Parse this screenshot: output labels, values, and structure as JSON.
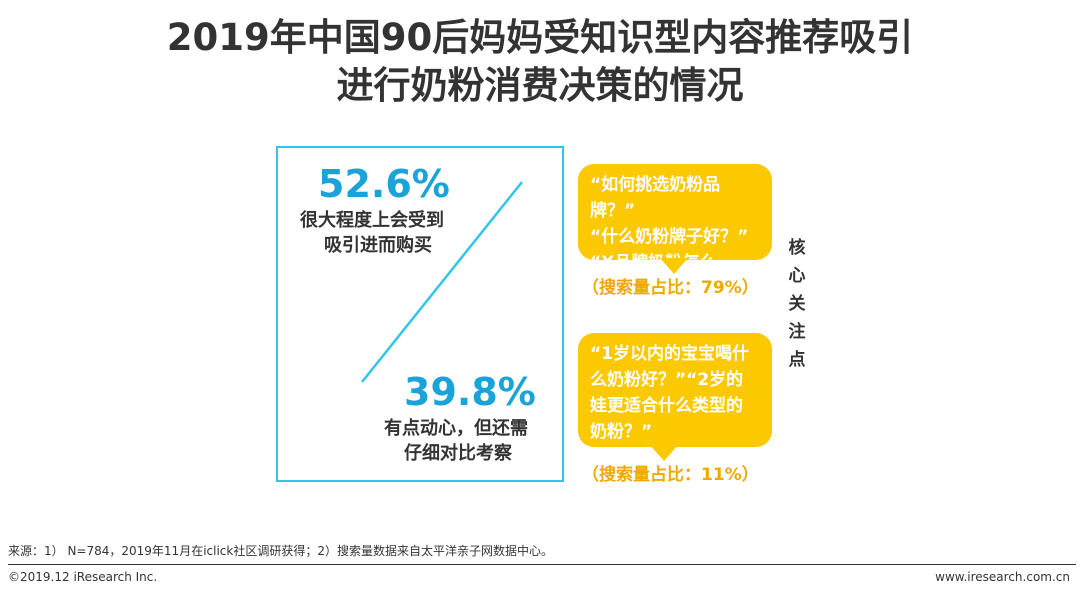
{
  "title": {
    "line1": "2019年中国90后妈妈受知识型内容推荐吸引",
    "line2": "进行奶粉消费决策的情况"
  },
  "stats": [
    {
      "percent": "52.6%",
      "line1": "很大程度上会受到",
      "line2": "吸引进而购买"
    },
    {
      "percent": "39.8%",
      "line1": "有点动心，但还需",
      "line2": "仔细对比考察"
    }
  ],
  "bubbles": [
    {
      "lines": [
        "“如何挑选奶粉品牌？”",
        "“什么奶粉牌子好？”",
        "“X品牌奶粉怎么样？”"
      ],
      "ratio": "（搜索量占比：79%）"
    },
    {
      "lines": [
        "“1岁以内的宝宝喝什",
        "么奶粉好？”“2岁的",
        "娃更适合什么类型的",
        "奶粉？”"
      ],
      "ratio": "（搜索量占比：11%）"
    }
  ],
  "side_label": [
    "核",
    "心",
    "关",
    "注",
    "点"
  ],
  "footer": {
    "source": "来源：1） N=784，2019年11月在iclick社区调研获得；2）搜索量数据来自太平洋亲子网数据中心。",
    "copyright": "©2019.12 iResearch Inc.",
    "website": "www.iresearch.com.cn"
  },
  "colors": {
    "accent": "#1aa3d8",
    "box_border": "#33c4ea",
    "bubble": "#fcc800",
    "ratio": "#f1a800"
  }
}
